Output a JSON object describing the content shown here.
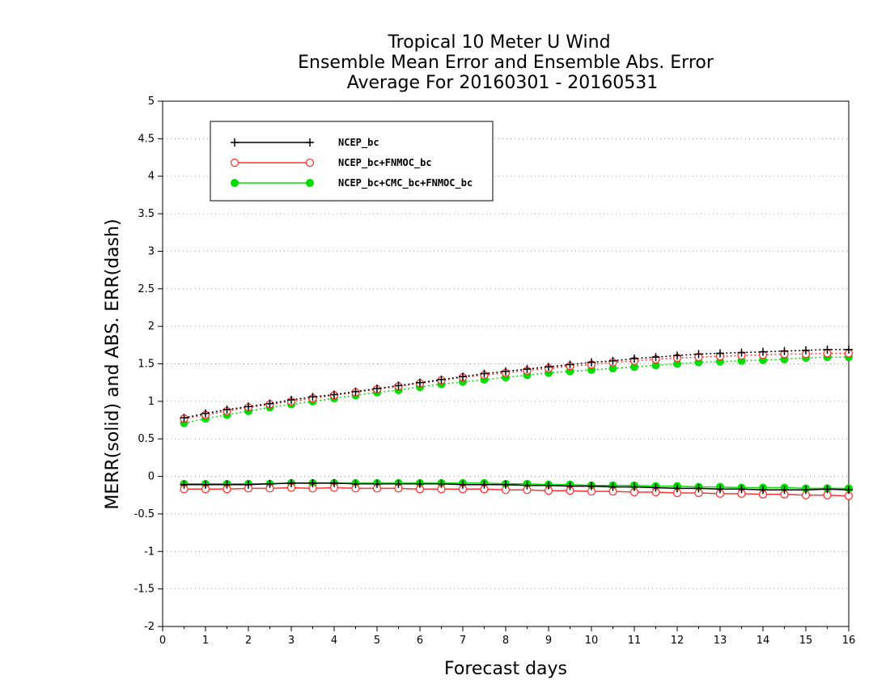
{
  "chart_data": {
    "type": "line",
    "title_lines": [
      "Tropical 10 Meter U Wind",
      "Ensemble Mean Error and Ensemble Abs. Error",
      "Average For 20160301 - 20160531"
    ],
    "xlabel": "Forecast days",
    "ylabel": "MERR(solid) and ABS. ERR(dash)",
    "xlim": [
      0,
      16
    ],
    "ylim": [
      -2,
      5
    ],
    "xticks": [
      0,
      1,
      2,
      3,
      4,
      5,
      6,
      7,
      8,
      9,
      10,
      11,
      12,
      13,
      14,
      15,
      16
    ],
    "yticks": [
      -2,
      -1.5,
      -1,
      -0.5,
      0,
      0.5,
      1,
      1.5,
      2,
      2.5,
      3,
      3.5,
      4,
      4.5,
      5
    ],
    "ytick_labels": [
      "-2",
      "-1.5",
      "-1",
      "-0.5",
      "0",
      "0.5",
      "1",
      "1.5",
      "2",
      "2.5",
      "3",
      "3.5",
      "4",
      "4.5",
      "5"
    ],
    "grid": "horizontal dotted",
    "legend_position": "top-left",
    "x": [
      0.5,
      1,
      1.5,
      2,
      2.5,
      3,
      3.5,
      4,
      4.5,
      5,
      5.5,
      6,
      6.5,
      7,
      7.5,
      8,
      8.5,
      9,
      9.5,
      10,
      10.5,
      11,
      11.5,
      12,
      12.5,
      13,
      13.5,
      14,
      14.5,
      15,
      15.5,
      16
    ],
    "series": [
      {
        "name": "NCEP_bc",
        "color": "#000000",
        "marker": "plus",
        "merr": [
          -0.11,
          -0.11,
          -0.11,
          -0.11,
          -0.1,
          -0.09,
          -0.09,
          -0.09,
          -0.1,
          -0.1,
          -0.1,
          -0.1,
          -0.1,
          -0.11,
          -0.11,
          -0.11,
          -0.12,
          -0.12,
          -0.13,
          -0.13,
          -0.14,
          -0.14,
          -0.15,
          -0.16,
          -0.16,
          -0.17,
          -0.17,
          -0.18,
          -0.18,
          -0.18,
          -0.17,
          -0.18
        ],
        "abs_err": [
          0.78,
          0.84,
          0.89,
          0.93,
          0.97,
          1.02,
          1.06,
          1.09,
          1.13,
          1.17,
          1.21,
          1.25,
          1.29,
          1.33,
          1.37,
          1.4,
          1.43,
          1.46,
          1.49,
          1.52,
          1.54,
          1.57,
          1.59,
          1.61,
          1.63,
          1.64,
          1.65,
          1.66,
          1.67,
          1.68,
          1.69,
          1.69
        ]
      },
      {
        "name": "NCEP_bc+FNMOC_bc",
        "color": "#ff3333",
        "marker": "open-circle",
        "merr": [
          -0.17,
          -0.17,
          -0.17,
          -0.16,
          -0.16,
          -0.15,
          -0.16,
          -0.15,
          -0.16,
          -0.16,
          -0.16,
          -0.17,
          -0.17,
          -0.17,
          -0.17,
          -0.18,
          -0.18,
          -0.19,
          -0.19,
          -0.2,
          -0.2,
          -0.21,
          -0.21,
          -0.22,
          -0.22,
          -0.23,
          -0.23,
          -0.24,
          -0.24,
          -0.25,
          -0.25,
          -0.26
        ],
        "abs_err": [
          0.77,
          0.82,
          0.87,
          0.92,
          0.96,
          1.0,
          1.04,
          1.08,
          1.12,
          1.16,
          1.2,
          1.24,
          1.28,
          1.32,
          1.35,
          1.38,
          1.41,
          1.44,
          1.47,
          1.49,
          1.52,
          1.54,
          1.56,
          1.58,
          1.59,
          1.6,
          1.61,
          1.62,
          1.63,
          1.63,
          1.64,
          1.64
        ]
      },
      {
        "name": "NCEP_bc+CMC_bc+FNMOC_bc",
        "color": "#00dd00",
        "marker": "filled-circle",
        "merr": [
          -0.1,
          -0.1,
          -0.1,
          -0.1,
          -0.1,
          -0.09,
          -0.09,
          -0.09,
          -0.09,
          -0.09,
          -0.09,
          -0.09,
          -0.09,
          -0.09,
          -0.09,
          -0.1,
          -0.1,
          -0.11,
          -0.11,
          -0.12,
          -0.12,
          -0.12,
          -0.13,
          -0.13,
          -0.14,
          -0.14,
          -0.15,
          -0.15,
          -0.15,
          -0.16,
          -0.16,
          -0.16
        ],
        "abs_err": [
          0.71,
          0.77,
          0.82,
          0.87,
          0.92,
          0.96,
          1.0,
          1.04,
          1.08,
          1.12,
          1.15,
          1.19,
          1.23,
          1.26,
          1.29,
          1.32,
          1.35,
          1.38,
          1.4,
          1.42,
          1.44,
          1.46,
          1.48,
          1.5,
          1.52,
          1.53,
          1.54,
          1.55,
          1.56,
          1.58,
          1.59,
          1.59
        ]
      }
    ]
  }
}
